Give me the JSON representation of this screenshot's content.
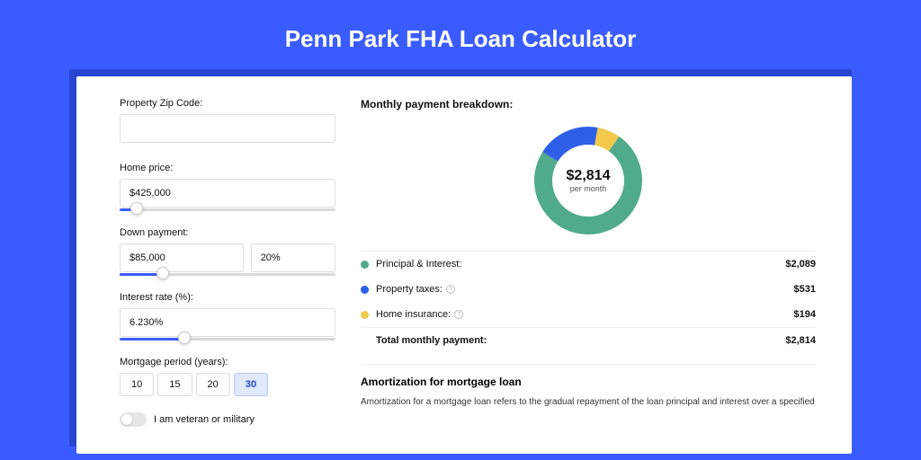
{
  "title": "Penn Park FHA Loan Calculator",
  "form": {
    "zip": {
      "label": "Property Zip Code:",
      "value": ""
    },
    "price": {
      "label": "Home price:",
      "value": "$425,000",
      "slider_pct": 8
    },
    "down": {
      "label": "Down payment:",
      "amount": "$85,000",
      "percent": "20%",
      "slider_pct": 20
    },
    "rate": {
      "label": "Interest rate (%):",
      "value": "6.230%",
      "slider_pct": 30
    },
    "period": {
      "label": "Mortgage period (years):",
      "options": [
        "10",
        "15",
        "20",
        "30"
      ],
      "active": "30"
    },
    "veteran_label": "I am veteran or military"
  },
  "breakdown": {
    "title": "Monthly payment breakdown:",
    "donut": {
      "amount": "$2,814",
      "sub": "per month",
      "slices": [
        {
          "label": "Principal & Interest:",
          "value": "$2,089",
          "num": 2089,
          "color": "#4fab8b"
        },
        {
          "label": "Property taxes:",
          "value": "$531",
          "num": 531,
          "color": "#2e5fe8",
          "info": true
        },
        {
          "label": "Home insurance:",
          "value": "$194",
          "num": 194,
          "color": "#f2c94c",
          "info": true
        }
      ],
      "total_label": "Total monthly payment:",
      "total_value": "$2,814",
      "track_color": "#ffffff",
      "ring_thickness": 20
    }
  },
  "amortization": {
    "title": "Amortization for mortgage loan",
    "text": "Amortization for a mortgage loan refers to the gradual repayment of the loan principal and interest over a specified"
  },
  "colors": {
    "page_bg": "#3a5cff",
    "shadow": "#2845d0",
    "slider_fill": "#3a5cff"
  }
}
